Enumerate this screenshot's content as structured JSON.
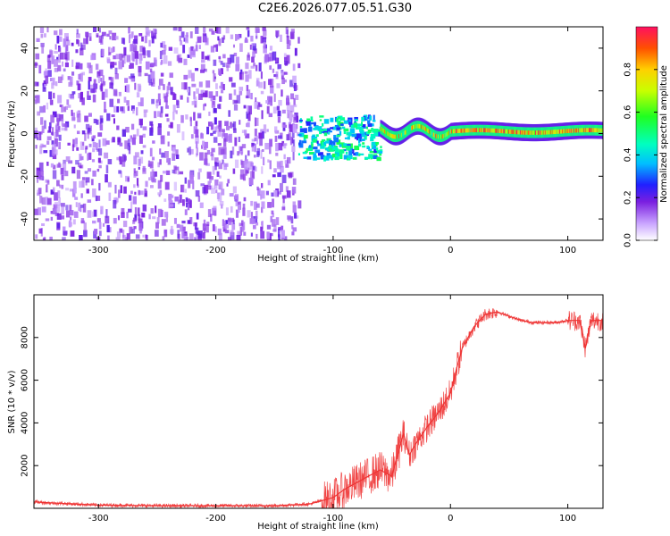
{
  "title": "C2E6.2026.077.05.51.G30",
  "chart_data": [
    {
      "type": "heatmap",
      "xlabel": "Height of straight line (km)",
      "ylabel": "Frequency (Hz)",
      "xlim": [
        -355,
        130
      ],
      "ylim": [
        -50,
        50
      ],
      "x_ticks": [
        -300,
        -200,
        -100,
        0,
        100
      ],
      "y_ticks": [
        -40,
        -20,
        0,
        20,
        40
      ],
      "colorbar": {
        "label": "Normalized spectral amplitude",
        "range": [
          0.0,
          1.0
        ],
        "ticks": [
          0.0,
          0.2,
          0.4,
          0.6,
          0.8
        ]
      },
      "regions": [
        {
          "x": [
            -355,
            -130
          ],
          "freq_spread": [
            -50,
            50
          ],
          "amplitude": [
            0.02,
            0.15
          ]
        },
        {
          "x": [
            -130,
            -60
          ],
          "freq_spread": [
            -12,
            8
          ],
          "amplitude": [
            0.15,
            0.4
          ]
        },
        {
          "x": [
            -60,
            0
          ],
          "freq_center": 1,
          "amplitude": [
            0.4,
            0.9
          ]
        },
        {
          "x": [
            0,
            130
          ],
          "freq_center": 1,
          "amplitude": [
            0.6,
            1.0
          ]
        }
      ]
    },
    {
      "type": "line",
      "xlabel": "Height of straight line (km)",
      "ylabel": "SNR (10 * v/v)",
      "xlim": [
        -355,
        130
      ],
      "ylim": [
        0,
        10000
      ],
      "x_ticks": [
        -300,
        -200,
        -100,
        0,
        100
      ],
      "y_ticks": [
        2000,
        4000,
        6000,
        8000
      ],
      "color": "#ee3333",
      "series": [
        {
          "x": [
            -355,
            -340,
            -300,
            -250,
            -200,
            -150,
            -120,
            -100,
            -90,
            -80,
            -70,
            -60,
            -50,
            -45,
            -40,
            -35,
            -30,
            -20,
            -10,
            0,
            5,
            10,
            20,
            30,
            40,
            50,
            60,
            70,
            80,
            90,
            100,
            110,
            115,
            120,
            130
          ],
          "y": [
            300,
            250,
            150,
            120,
            120,
            120,
            200,
            500,
            900,
            1200,
            1500,
            1800,
            1500,
            2500,
            3500,
            2500,
            3000,
            3800,
            4500,
            5400,
            6500,
            7500,
            8500,
            9100,
            9200,
            9000,
            8800,
            8700,
            8700,
            8700,
            8800,
            8800,
            7500,
            8800,
            8800
          ]
        }
      ]
    }
  ]
}
